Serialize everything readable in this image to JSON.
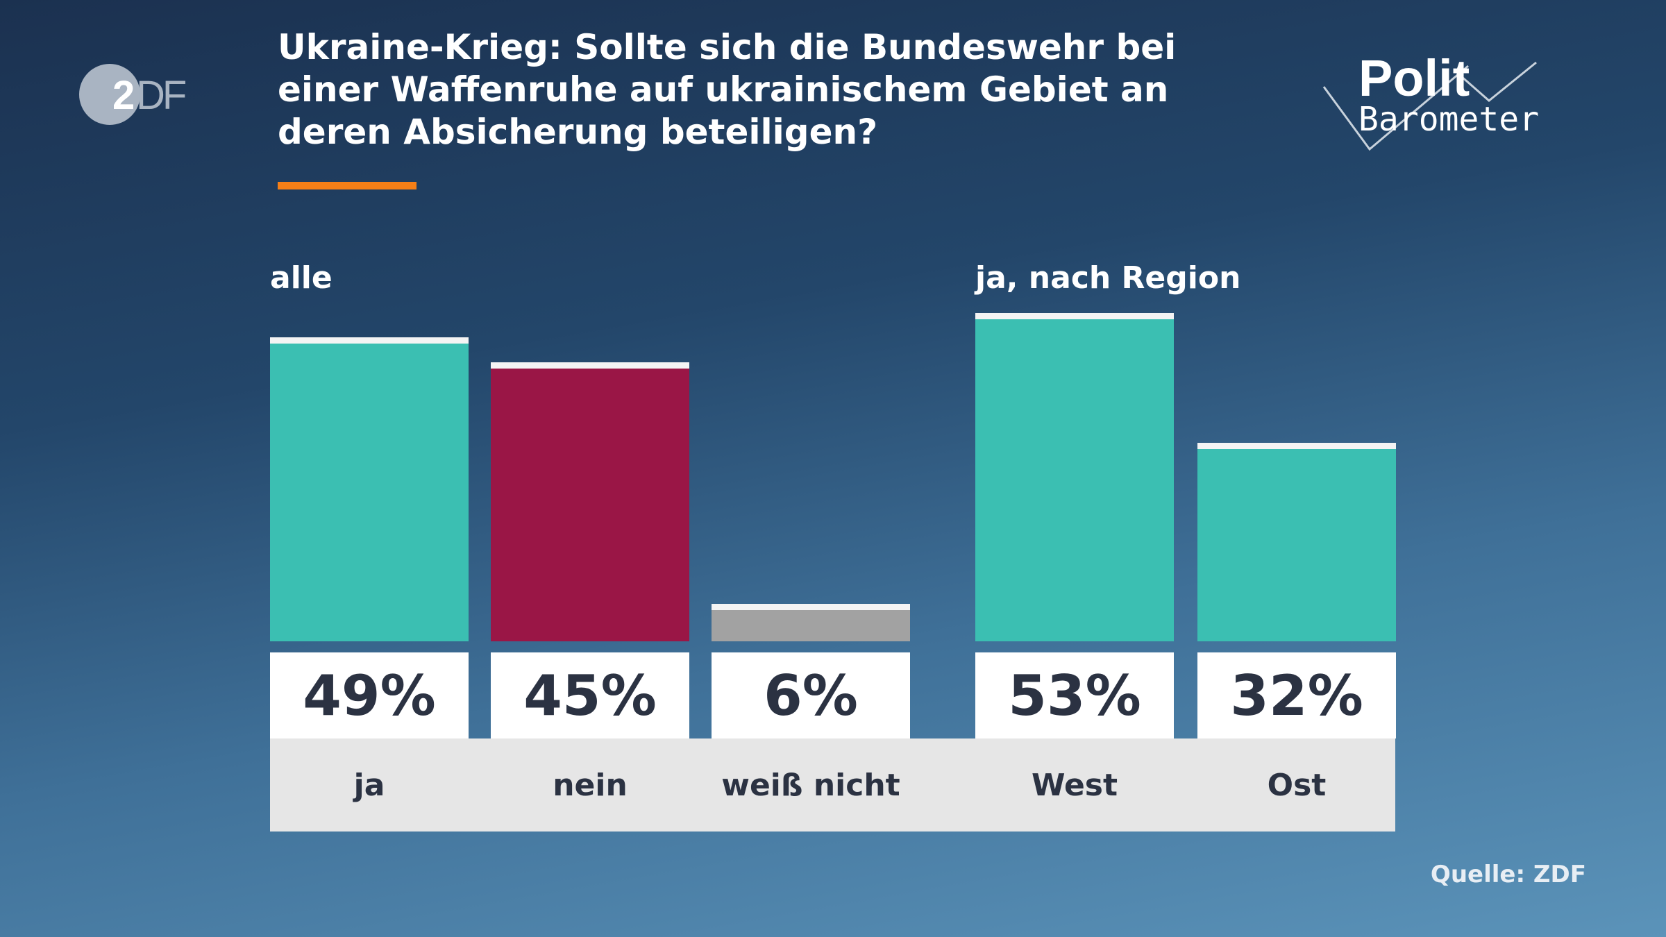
{
  "header": {
    "title": "Ukraine-Krieg: Sollte sich die Bundeswehr bei einer Waffenruhe auf ukrainischem Gebiet an deren Absicherung beteiligen?",
    "logo_left": "ZDF",
    "logo_right_line1": "Polit",
    "logo_right_line2": "Barometer",
    "accent_color": "#f57f17"
  },
  "chart_data": {
    "type": "bar",
    "groups": [
      {
        "label": "alle",
        "categories": [
          "ja",
          "nein",
          "weiß nicht"
        ],
        "values": [
          49,
          45,
          6
        ],
        "display": [
          "49%",
          "45%",
          "6%"
        ],
        "colors": [
          "#3bbfb2",
          "#9a1646",
          "#a2a2a2"
        ]
      },
      {
        "label": "ja, nach Region",
        "categories": [
          "West",
          "Ost"
        ],
        "values": [
          53,
          32
        ],
        "display": [
          "53%",
          "32%"
        ],
        "colors": [
          "#3bbfb2",
          "#3bbfb2"
        ]
      }
    ],
    "unit": "%"
  },
  "footer": {
    "source": "Quelle: ZDF"
  }
}
